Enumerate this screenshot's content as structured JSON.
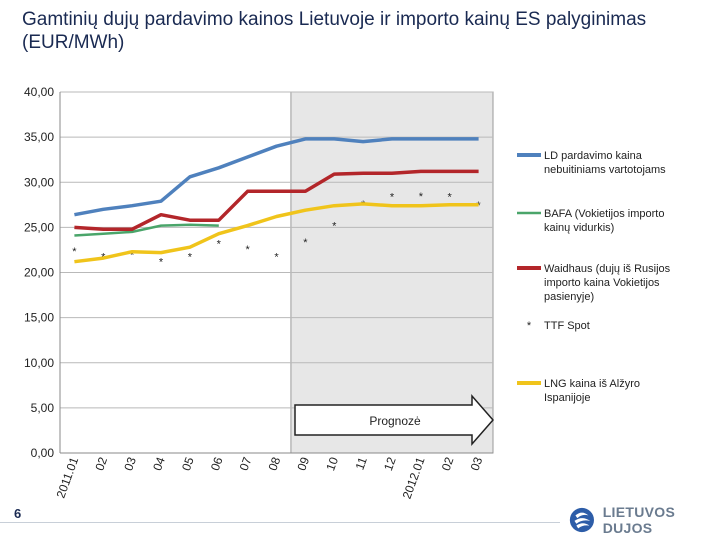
{
  "title": "Gamtinių dujų pardavimo kainos Lietuvoje ir importo kainų ES palyginimas (EUR/MWh)",
  "page_number": "6",
  "logo": {
    "text": "LIETUVOS DUJOS",
    "icon": "ld-swirl-icon"
  },
  "forecast_label": "Prognozė",
  "colors": {
    "ld": "#4f81bd",
    "bafa": "#4aa56a",
    "waidhaus": "#b3262a",
    "ttf": "#1f1f1f",
    "lng": "#f0c41b",
    "forecast_bg": "#e7e7e7"
  },
  "chart_data": {
    "type": "line",
    "categories": [
      "2011.01",
      "02",
      "03",
      "04",
      "05",
      "06",
      "07",
      "08",
      "09",
      "10",
      "11",
      "12",
      "2012.01",
      "02",
      "03"
    ],
    "ylim": [
      0,
      40
    ],
    "y_ticks": [
      "0,00",
      "5,00",
      "10,00",
      "15,00",
      "20,00",
      "25,00",
      "30,00",
      "35,00",
      "40,00"
    ],
    "forecast_start_index": 7.5,
    "series": [
      {
        "key": "ld",
        "name": "LD pardavimo kaina nebuitiniams vartotojams",
        "marker": "line",
        "values": [
          26.4,
          27.0,
          27.4,
          27.9,
          30.6,
          31.6,
          32.8,
          34.0,
          34.8,
          34.8,
          34.5,
          34.8,
          34.8,
          34.8,
          34.8
        ]
      },
      {
        "key": "bafa",
        "name": "BAFA (Vokietijos importo kainų vidurkis)",
        "marker": "line",
        "values": [
          24.1,
          24.3,
          24.5,
          25.2,
          25.3,
          25.2,
          null,
          null,
          null,
          null,
          null,
          null,
          null,
          null,
          null
        ]
      },
      {
        "key": "waidhaus",
        "name": "Waidhaus (dujų iš Rusijos importo kaina Vokietijos pasienyje)",
        "marker": "line",
        "values": [
          25.0,
          24.8,
          24.8,
          26.4,
          25.8,
          25.8,
          29.0,
          29.0,
          29.0,
          30.9,
          31.0,
          31.0,
          31.2,
          31.2,
          31.2
        ]
      },
      {
        "key": "ttf",
        "name": "TTF Spot",
        "marker": "star",
        "values": [
          22.4,
          21.8,
          22.0,
          21.2,
          21.8,
          23.2,
          22.6,
          21.8,
          23.4,
          25.2,
          27.6,
          28.4,
          28.5,
          28.4,
          27.5
        ]
      },
      {
        "key": "lng",
        "name": "LNG kaina iš Alžyro Ispanijoje",
        "marker": "line",
        "values": [
          21.2,
          21.6,
          22.3,
          22.2,
          22.8,
          24.3,
          25.2,
          26.2,
          26.9,
          27.4,
          27.6,
          27.4,
          27.4,
          27.5,
          27.5
        ]
      }
    ]
  }
}
